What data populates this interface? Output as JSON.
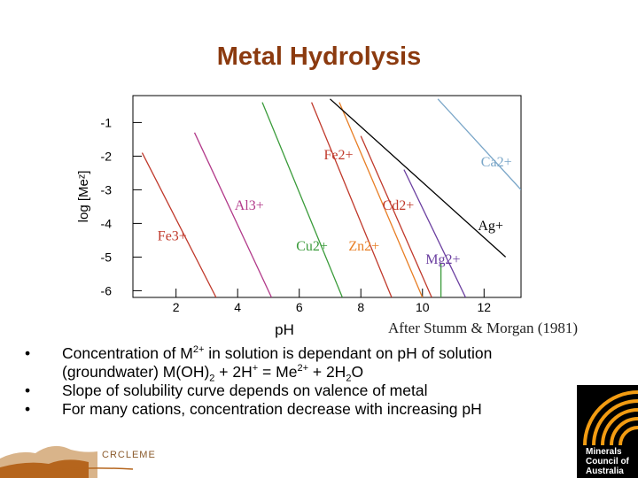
{
  "slide": {
    "title": "Metal Hydrolysis",
    "credit": "After Stumm & Morgan (1981)",
    "bullets": {
      "b1_text1": "Concentration of M",
      "b1_sup1": "2+",
      "b1_text2": " in solution is dependant on pH of solution",
      "b1_line2_a": "(groundwater) M(OH)",
      "b1_sub1": "2",
      "b1_line2_b": " + 2H",
      "b1_sup2": "+",
      "b1_line2_c": " = Me",
      "b1_sup3": "2+",
      "b1_line2_d": " + 2H",
      "b1_sub2": "2",
      "b1_line2_e": "O",
      "b2": "Slope of solubility curve depends on valence of metal",
      "b3": "For many cations, concentration decrease with increasing pH",
      "marker": "•"
    },
    "logos": {
      "left_text": "CRCLEME",
      "right_line1": "Minerals",
      "right_line2": "Council of",
      "right_line3": "Australia"
    }
  },
  "chart_data": {
    "type": "line",
    "xlabel": "pH",
    "ylabel": "log [Meᶻ]",
    "xlim": [
      0.6,
      13.2
    ],
    "ylim": [
      -6.2,
      -0.2
    ],
    "xticks": [
      2,
      4,
      6,
      8,
      10,
      12
    ],
    "yticks": [
      -1,
      -2,
      -3,
      -4,
      -5,
      -6
    ],
    "series": [
      {
        "name": "Fe3+",
        "color": "#c0392b",
        "points": [
          [
            0.9,
            -1.9
          ],
          [
            3.3,
            -6.2
          ]
        ]
      },
      {
        "name": "Al3+",
        "color": "#b23a8a",
        "points": [
          [
            2.6,
            -1.3
          ],
          [
            5.1,
            -6.2
          ]
        ]
      },
      {
        "name": "Cu2+",
        "color": "#3a9b3a",
        "points": [
          [
            4.8,
            -0.4
          ],
          [
            7.4,
            -6.2
          ]
        ]
      },
      {
        "name": "Fe2+",
        "color": "#c0392b",
        "points": [
          [
            6.4,
            -0.4
          ],
          [
            9.0,
            -6.2
          ]
        ]
      },
      {
        "name": "Zn2+",
        "color": "#e87e24",
        "points": [
          [
            7.3,
            -0.4
          ],
          [
            10.0,
            -6.2
          ]
        ]
      },
      {
        "name": "Cd2+",
        "color": "#c0392b",
        "points": [
          [
            8.0,
            -1.4
          ],
          [
            10.3,
            -6.2
          ]
        ]
      },
      {
        "name": "Mg2+",
        "color": "#6b3fa0",
        "points": [
          [
            9.4,
            -2.4
          ],
          [
            11.4,
            -6.2
          ]
        ]
      },
      {
        "name": "Ag+",
        "color": "#000000",
        "points": [
          [
            7.0,
            -0.3
          ],
          [
            12.7,
            -5.0
          ]
        ]
      },
      {
        "name": "Ca2+",
        "color": "#7aa6c8",
        "points": [
          [
            10.5,
            -0.3
          ],
          [
            13.2,
            -3.0
          ]
        ]
      },
      {
        "name": "",
        "color": "#3a9b3a",
        "points": [
          [
            10.6,
            -5.2
          ],
          [
            10.6,
            -6.2
          ]
        ]
      }
    ],
    "labels": [
      {
        "text": "Fe2+",
        "x": 6.8,
        "y": -2.1,
        "color": "#c0392b"
      },
      {
        "text": "Ca2+",
        "x": 11.9,
        "y": -2.3,
        "color": "#7aa6c8"
      },
      {
        "text": "Al3+",
        "x": 3.9,
        "y": -3.6,
        "color": "#b23a8a"
      },
      {
        "text": "Cd2+",
        "x": 8.7,
        "y": -3.6,
        "color": "#c0392b"
      },
      {
        "text": "Fe3+",
        "x": 1.4,
        "y": -4.5,
        "color": "#c0392b"
      },
      {
        "text": "Cu2+",
        "x": 5.9,
        "y": -4.8,
        "color": "#3a9b3a"
      },
      {
        "text": "Zn2+",
        "x": 7.6,
        "y": -4.8,
        "color": "#e87e24"
      },
      {
        "text": "Ag+",
        "x": 11.8,
        "y": -4.2,
        "color": "#000000"
      },
      {
        "text": "Mg2+",
        "x": 10.1,
        "y": -5.2,
        "color": "#6b3fa0"
      }
    ],
    "grid": false
  }
}
